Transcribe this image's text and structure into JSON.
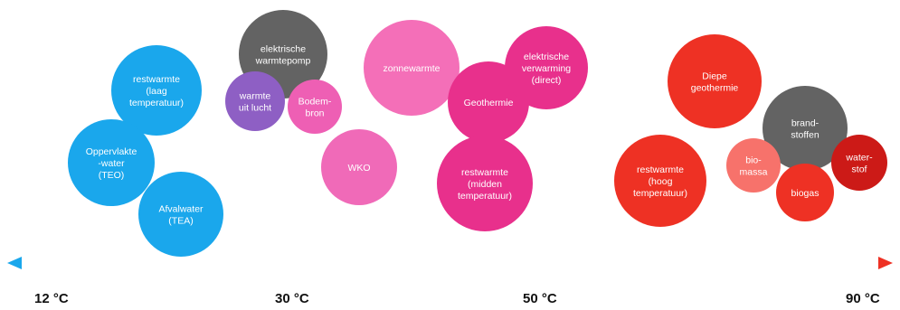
{
  "bubbles": [
    {
      "lines": [
        "restwarmte",
        "(laag",
        "temperatuur)"
      ],
      "color": "#1aa7ec"
    },
    {
      "lines": [
        "Oppervlakte",
        "-water",
        "(TEO)"
      ],
      "color": "#1aa7ec"
    },
    {
      "lines": [
        "Afvalwater",
        "(TEA)"
      ],
      "color": "#1aa7ec"
    },
    {
      "lines": [
        "elektrische",
        "warmtepomp"
      ],
      "color": "#636363"
    },
    {
      "lines": [
        "warmte",
        "uit lucht"
      ],
      "color": "#8e5fc4"
    },
    {
      "lines": [
        "Bodem-",
        "bron"
      ],
      "color": "#ee5fb4"
    },
    {
      "lines": [
        "WKO"
      ],
      "color": "#f06ab8"
    },
    {
      "lines": [
        "zonnewarmte"
      ],
      "color": "#f46fb8"
    },
    {
      "lines": [
        "Geothermie"
      ],
      "color": "#e8308c"
    },
    {
      "lines": [
        "elektrische",
        "verwarming",
        "(direct)"
      ],
      "color": "#e8308c"
    },
    {
      "lines": [
        "restwarmte",
        "(midden",
        "temperatuur)"
      ],
      "color": "#e8308c"
    },
    {
      "lines": [
        "Diepe",
        "geothermie"
      ],
      "color": "#ee3124"
    },
    {
      "lines": [
        "restwarmte",
        "(hoog",
        "temperatuur)"
      ],
      "color": "#ee3124"
    },
    {
      "lines": [
        "brand-",
        "stoffen"
      ],
      "color": "#636363"
    },
    {
      "lines": [
        "bio-",
        "massa"
      ],
      "color": "#f7726b"
    },
    {
      "lines": [
        "biogas"
      ],
      "color": "#ee3124"
    },
    {
      "lines": [
        "water-",
        "stof"
      ],
      "color": "#cc1a17"
    }
  ],
  "axis": {
    "labels": [
      "12 °C",
      "30 °C",
      "50 °C",
      "90 °C"
    ],
    "gradient_start": "#1aa7ec",
    "gradient_end": "#ee3124"
  }
}
